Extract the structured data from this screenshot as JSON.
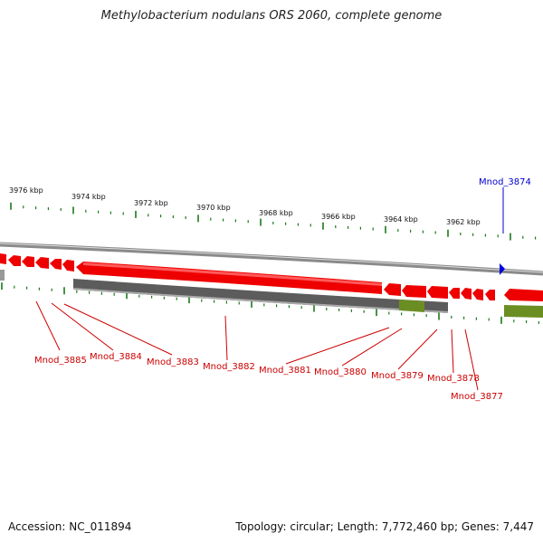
{
  "title": "Methylobacterium nodulans ORS 2060, complete genome",
  "footer": {
    "accession": "Accession: NC_011894",
    "summary": "Topology: circular; Length: 7,772,460 bp; Genes: 7,447"
  },
  "colors": {
    "forward_gene": "#ff0000",
    "reverse_gene": "#555555",
    "rna_gene": "#6b8e23",
    "tick": "#1a7a1a",
    "backbone": "#888888",
    "label_red": "#cc0000",
    "label_blue": "#0000cc"
  },
  "scale_labels": [
    "3976 kbp",
    "3974 kbp",
    "3972 kbp",
    "3970 kbp",
    "3968 kbp",
    "3966 kbp",
    "3964 kbp",
    "3962 kbp"
  ],
  "gene_labels": {
    "top": [
      "Mnod_3874"
    ],
    "bottom": [
      "Mnod_3885",
      "Mnod_3884",
      "Mnod_3883",
      "Mnod_3882",
      "Mnod_3881",
      "Mnod_3880",
      "Mnod_3879",
      "Mnod_3878",
      "Mnod_3877"
    ]
  }
}
